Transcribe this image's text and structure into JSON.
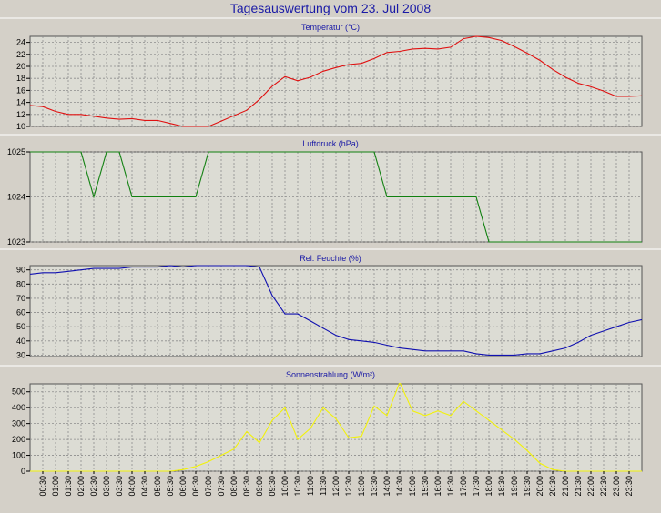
{
  "title": "Tagesauswertung vom 23. Jul 2008",
  "colors": {
    "background": "#d4d0c8",
    "plot_background": "#dcdcd4",
    "grid": "#8c8c8c",
    "title": "#1a1aa6"
  },
  "x_tick_labels": [
    "00:30",
    "01:00",
    "01:30",
    "02:00",
    "02:30",
    "03:00",
    "03:30",
    "04:00",
    "04:30",
    "05:00",
    "05:30",
    "06:00",
    "06:30",
    "07:00",
    "07:30",
    "08:00",
    "08:30",
    "09:00",
    "09:30",
    "10:00",
    "10:30",
    "11:00",
    "11:30",
    "12:00",
    "12:30",
    "13:00",
    "13:30",
    "14:00",
    "14:30",
    "15:00",
    "15:30",
    "16:00",
    "16:30",
    "17:00",
    "17:30",
    "18:00",
    "18:30",
    "19:00",
    "19:30",
    "20:00",
    "20:30",
    "21:00",
    "21:30",
    "22:00",
    "22:30",
    "23:00",
    "23:30"
  ],
  "chart_data": [
    {
      "type": "line",
      "title": "Temperatur (°C)",
      "ylim": [
        10,
        25
      ],
      "yticks": [
        10,
        12,
        14,
        16,
        18,
        20,
        22,
        24
      ],
      "grid": true,
      "color": "#e01010",
      "series": [
        {
          "x": [
            0,
            0.5,
            1,
            1.5,
            2,
            2.5,
            3,
            3.5,
            4,
            4.5,
            5,
            5.5,
            6,
            6.5,
            7,
            7.5,
            8,
            8.5,
            9,
            9.5,
            10,
            10.5,
            11,
            11.5,
            12,
            12.5,
            13,
            13.5,
            14,
            14.5,
            15,
            15.5,
            16,
            16.5,
            17,
            17.5,
            18,
            18.5,
            19,
            19.5,
            20,
            20.5,
            21,
            21.5,
            22,
            22.5,
            23,
            23.5,
            24
          ],
          "values": [
            13.5,
            13.3,
            12.5,
            12.0,
            12.0,
            11.7,
            11.4,
            11.2,
            11.3,
            11.0,
            11.0,
            10.5,
            10.0,
            10.0,
            10.0,
            10.9,
            11.8,
            12.7,
            14.5,
            16.7,
            18.3,
            17.6,
            18.2,
            19.2,
            19.8,
            20.3,
            20.5,
            21.3,
            22.3,
            22.5,
            22.9,
            23.0,
            22.9,
            23.2,
            24.6,
            25.0,
            24.8,
            24.3,
            23.3,
            22.2,
            21.0,
            19.5,
            18.2,
            17.2,
            16.6,
            15.9,
            15.0,
            15.0,
            15.1
          ]
        }
      ]
    },
    {
      "type": "line",
      "title": "Luftdruck (hPa)",
      "ylim": [
        1023,
        1025
      ],
      "yticks": [
        1023,
        1024,
        1025
      ],
      "grid": true,
      "color": "#108010",
      "series": [
        {
          "x": [
            0,
            0.5,
            1,
            1.5,
            2,
            2.5,
            3,
            3.5,
            4,
            4.5,
            5,
            5.5,
            6,
            6.5,
            7,
            7.5,
            8,
            8.5,
            9,
            9.5,
            10,
            10.5,
            11,
            11.5,
            12,
            12.5,
            13,
            13.5,
            14,
            14.5,
            15,
            15.5,
            16,
            16.5,
            17,
            17.5,
            18,
            18.5,
            19,
            19.5,
            20,
            20.5,
            21,
            21.5,
            22,
            22.5,
            23,
            23.5,
            24
          ],
          "values": [
            1025,
            1025,
            1025,
            1025,
            1025,
            1024,
            1025,
            1025,
            1024,
            1024,
            1024,
            1024,
            1024,
            1024,
            1025,
            1025,
            1025,
            1025,
            1025,
            1025,
            1025,
            1025,
            1025,
            1025,
            1025,
            1025,
            1025,
            1025,
            1024,
            1024,
            1024,
            1024,
            1024,
            1024,
            1024,
            1024,
            1023,
            1023,
            1023,
            1023,
            1023,
            1023,
            1023,
            1023,
            1023,
            1023,
            1023,
            1023,
            1023
          ]
        }
      ]
    },
    {
      "type": "line",
      "title": "Rel. Feuchte (%)",
      "ylim": [
        29,
        93
      ],
      "yticks": [
        30,
        40,
        50,
        60,
        70,
        80,
        90
      ],
      "grid": true,
      "color": "#1010b0",
      "series": [
        {
          "x": [
            0,
            0.5,
            1,
            1.5,
            2,
            2.5,
            3,
            3.5,
            4,
            4.5,
            5,
            5.5,
            6,
            6.5,
            7,
            7.5,
            8,
            8.5,
            9,
            9.5,
            10,
            10.5,
            11,
            11.5,
            12,
            12.5,
            13,
            13.5,
            14,
            14.5,
            15,
            15.5,
            16,
            16.5,
            17,
            17.5,
            18,
            18.5,
            19,
            19.5,
            20,
            20.5,
            21,
            21.5,
            22,
            22.5,
            23,
            23.5,
            24
          ],
          "values": [
            87,
            88,
            88,
            89,
            90,
            91,
            91,
            91,
            92,
            92,
            92,
            93,
            92,
            93,
            93,
            93,
            93,
            93,
            92,
            72,
            59,
            59,
            54,
            49,
            44,
            41,
            40,
            39,
            37,
            35,
            34,
            33,
            33,
            33,
            33,
            31,
            30,
            30,
            30,
            31,
            31,
            33,
            35,
            39,
            44,
            47,
            50,
            53,
            55
          ]
        }
      ]
    },
    {
      "type": "line",
      "title": "Sonnenstrahlung (W/m²)",
      "ylim": [
        0,
        550
      ],
      "yticks": [
        0,
        100,
        200,
        300,
        400,
        500
      ],
      "grid": true,
      "color": "#f2f20a",
      "series": [
        {
          "x": [
            0,
            0.5,
            1,
            1.5,
            2,
            2.5,
            3,
            3.5,
            4,
            4.5,
            5,
            5.5,
            6,
            6.5,
            7,
            7.5,
            8,
            8.5,
            9,
            9.5,
            10,
            10.5,
            11,
            11.5,
            12,
            12.5,
            13,
            13.5,
            14,
            14.5,
            15,
            15.5,
            16,
            16.5,
            17,
            17.5,
            18,
            18.5,
            19,
            19.5,
            20,
            20.5,
            21,
            21.5,
            22,
            22.5,
            23,
            23.5,
            24
          ],
          "values": [
            0,
            0,
            0,
            0,
            0,
            0,
            0,
            0,
            0,
            0,
            0,
            0,
            10,
            30,
            60,
            100,
            140,
            250,
            180,
            320,
            400,
            200,
            270,
            400,
            330,
            210,
            220,
            410,
            350,
            560,
            380,
            350,
            380,
            350,
            440,
            380,
            320,
            260,
            200,
            130,
            50,
            10,
            0,
            0,
            0,
            0,
            0,
            0,
            0
          ]
        }
      ]
    }
  ]
}
